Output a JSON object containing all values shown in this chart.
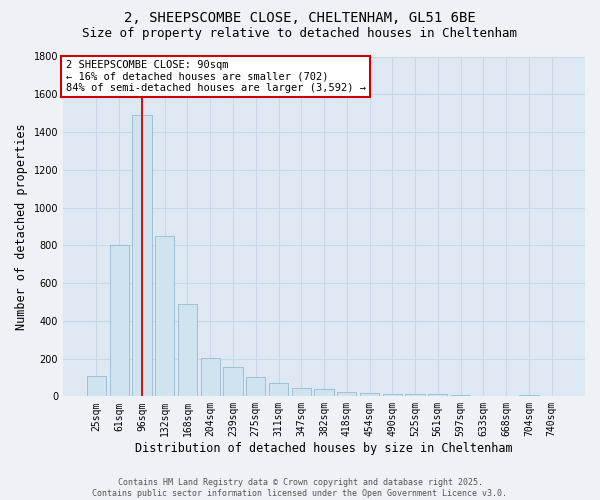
{
  "title_line1": "2, SHEEPSCOMBE CLOSE, CHELTENHAM, GL51 6BE",
  "title_line2": "Size of property relative to detached houses in Cheltenham",
  "xlabel": "Distribution of detached houses by size in Cheltenham",
  "ylabel": "Number of detached properties",
  "categories": [
    "25sqm",
    "61sqm",
    "96sqm",
    "132sqm",
    "168sqm",
    "204sqm",
    "239sqm",
    "275sqm",
    "311sqm",
    "347sqm",
    "382sqm",
    "418sqm",
    "454sqm",
    "490sqm",
    "525sqm",
    "561sqm",
    "597sqm",
    "633sqm",
    "668sqm",
    "704sqm",
    "740sqm"
  ],
  "values": [
    110,
    800,
    1490,
    850,
    490,
    205,
    155,
    100,
    70,
    45,
    40,
    25,
    20,
    15,
    15,
    10,
    5,
    0,
    0,
    5,
    0
  ],
  "bar_color": "#d0e4f0",
  "bar_edge_color": "#8ab0cc",
  "vline_color": "#cc0000",
  "vline_index": 2,
  "ylim": [
    0,
    1800
  ],
  "yticks": [
    0,
    200,
    400,
    600,
    800,
    1000,
    1200,
    1400,
    1600,
    1800
  ],
  "annotation_line1": "2 SHEEPSCOMBE CLOSE: 90sqm",
  "annotation_line2": "← 16% of detached houses are smaller (702)",
  "annotation_line3": "84% of semi-detached houses are larger (3,592) →",
  "annotation_box_edgecolor": "#cc0000",
  "footer_text": "Contains HM Land Registry data © Crown copyright and database right 2025.\nContains public sector information licensed under the Open Government Licence v3.0.",
  "bg_color": "#eef2f6",
  "plot_bg_color": "#dde8f2",
  "grid_color": "#c8d8e8",
  "title_fontsize": 10,
  "subtitle_fontsize": 9,
  "xlabel_fontsize": 8.5,
  "ylabel_fontsize": 8.5,
  "tick_fontsize": 7,
  "footer_fontsize": 6,
  "ann_fontsize": 7.5
}
